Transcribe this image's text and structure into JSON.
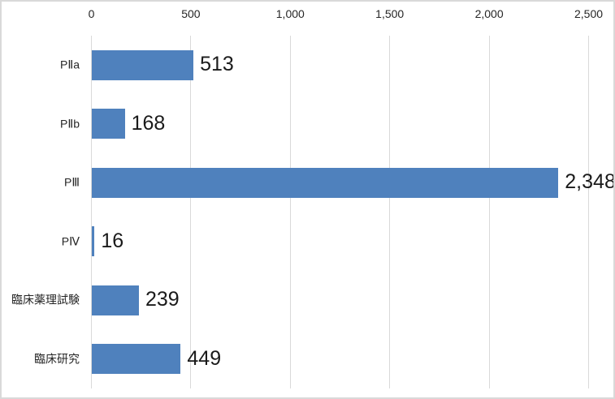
{
  "chart_data": {
    "type": "bar",
    "orientation": "horizontal",
    "title": "",
    "categories": [
      "PⅡa",
      "PⅡb",
      "PⅢ",
      "PⅣ",
      "臨床薬理試験",
      "臨床研究"
    ],
    "values": [
      513,
      168,
      2348,
      16,
      239,
      449
    ],
    "value_labels": [
      "513",
      "168",
      "2,348",
      "16",
      "239",
      "449"
    ],
    "xlim": [
      0,
      2500
    ],
    "x_tick_values": [
      0,
      500,
      1000,
      1500,
      2000,
      2500
    ],
    "x_tick_labels": [
      "0",
      "500",
      "1,000",
      "1,500",
      "2,000",
      "2,500"
    ],
    "axis_position": "top",
    "grid": true,
    "legend": false,
    "xlabel": "",
    "ylabel": "",
    "colors": {
      "bar": "#4F81BD",
      "gridline": "#D9D9D9",
      "chart_border": "#D9D9D9",
      "tick_label": "#262626",
      "category_label": "#262626",
      "value_label": "#1A1A1A",
      "background": "#FFFFFF"
    }
  }
}
